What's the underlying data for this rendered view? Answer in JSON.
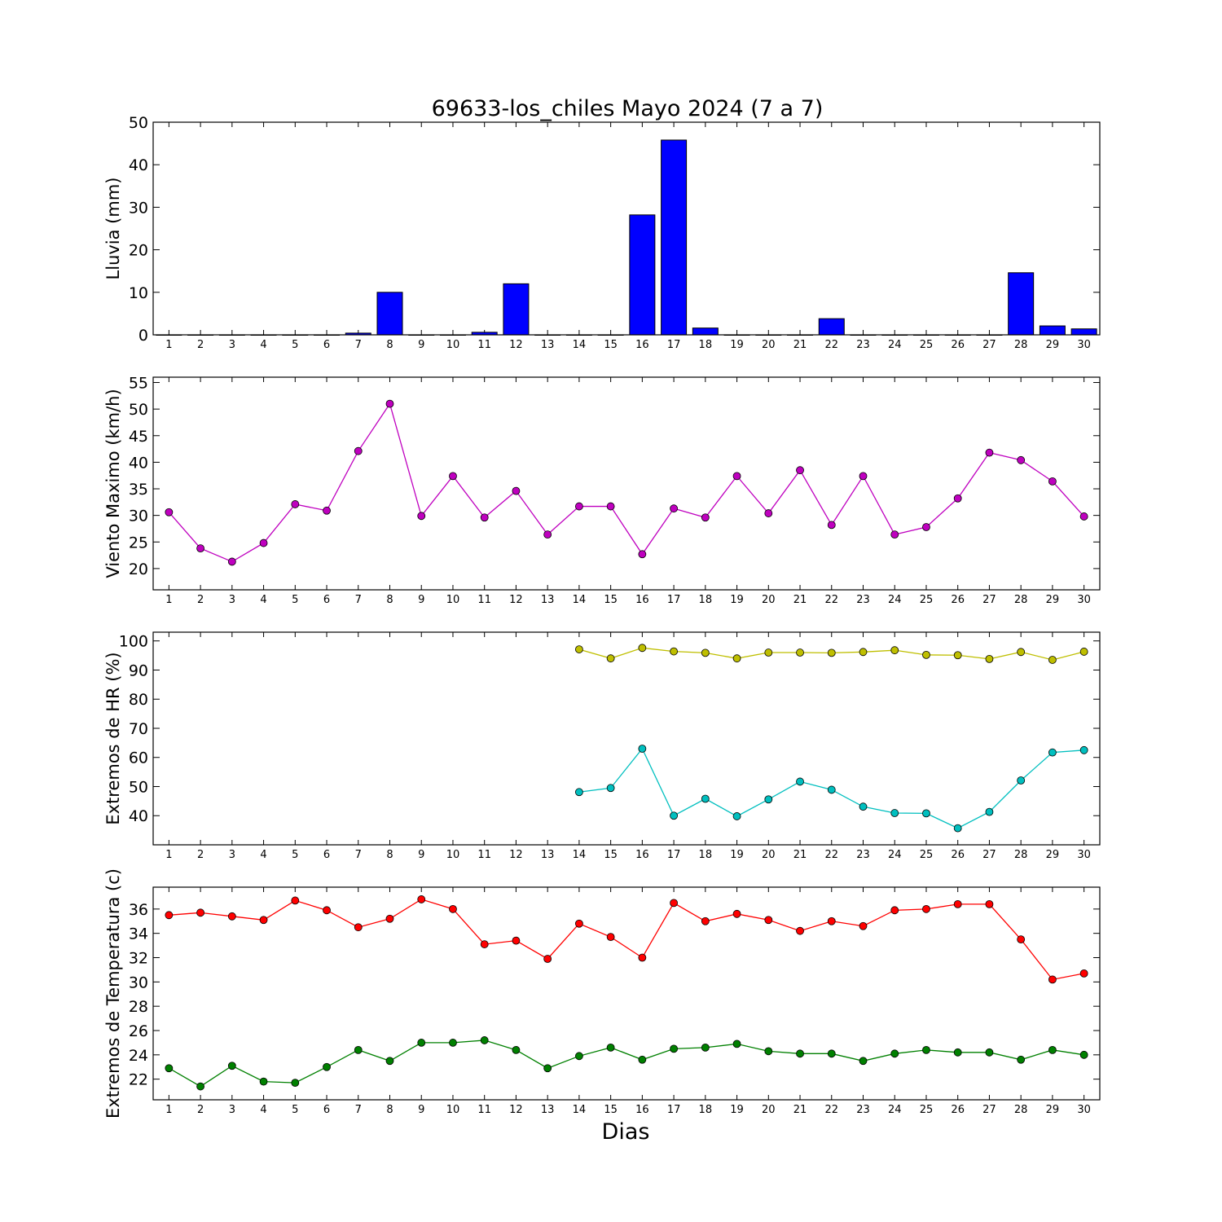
{
  "figure": {
    "title": "69633-los_chiles Mayo 2024  (7 a 7)",
    "xlabel": "Dias"
  },
  "chart_data": [
    {
      "type": "bar",
      "ylabel": "Lluvia (mm)",
      "ylim": [
        0,
        50
      ],
      "yticks": [
        0,
        10,
        20,
        30,
        40,
        50
      ],
      "categories": [
        "1",
        "2",
        "3",
        "4",
        "5",
        "6",
        "7",
        "8",
        "9",
        "10",
        "11",
        "12",
        "13",
        "14",
        "15",
        "16",
        "17",
        "18",
        "19",
        "20",
        "21",
        "22",
        "23",
        "24",
        "25",
        "26",
        "27",
        "28",
        "29",
        "30"
      ],
      "series": [
        {
          "color": "#0000ff",
          "values": [
            0,
            0,
            0,
            0,
            0,
            0,
            0.4,
            10,
            0,
            0,
            0.6,
            12,
            0,
            0,
            0,
            28.2,
            45.8,
            1.6,
            0,
            0,
            0,
            3.8,
            0,
            0,
            0,
            0,
            0,
            14.6,
            2.1,
            1.4
          ]
        }
      ],
      "grid": false
    },
    {
      "type": "line",
      "ylabel": "Viento Maximo (km/h)",
      "ylim": [
        16,
        56
      ],
      "yticks": [
        20,
        25,
        30,
        35,
        40,
        45,
        50,
        55
      ],
      "categories": [
        "1",
        "2",
        "3",
        "4",
        "5",
        "6",
        "7",
        "8",
        "9",
        "10",
        "11",
        "12",
        "13",
        "14",
        "15",
        "16",
        "17",
        "18",
        "19",
        "20",
        "21",
        "22",
        "23",
        "24",
        "25",
        "26",
        "27",
        "28",
        "29",
        "30"
      ],
      "series": [
        {
          "color": "#bf00bf",
          "values": [
            30.6,
            23.8,
            21.3,
            24.8,
            32.1,
            30.9,
            42.1,
            51,
            29.9,
            37.4,
            29.6,
            34.6,
            26.4,
            31.7,
            31.7,
            22.7,
            31.3,
            29.6,
            37.4,
            30.4,
            38.5,
            28.2,
            37.4,
            26.4,
            27.8,
            33.2,
            41.8,
            40.4,
            36.4,
            29.8
          ]
        }
      ],
      "grid": false
    },
    {
      "type": "line",
      "ylabel": "Extremos de HR (%)",
      "ylim": [
        30,
        103
      ],
      "yticks": [
        40,
        50,
        60,
        70,
        80,
        90,
        100
      ],
      "categories": [
        "1",
        "2",
        "3",
        "4",
        "5",
        "6",
        "7",
        "8",
        "9",
        "10",
        "11",
        "12",
        "13",
        "14",
        "15",
        "16",
        "17",
        "18",
        "19",
        "20",
        "21",
        "22",
        "23",
        "24",
        "25",
        "26",
        "27",
        "28",
        "29",
        "30"
      ],
      "series": [
        {
          "color": "#bfbf00",
          "values": [
            null,
            null,
            null,
            null,
            null,
            null,
            null,
            null,
            null,
            null,
            null,
            null,
            null,
            97.1,
            94,
            97.6,
            96.4,
            95.9,
            94,
            96,
            96,
            95.9,
            96.2,
            96.8,
            95.2,
            95.1,
            93.8,
            96.2,
            93.5,
            96.3
          ]
        },
        {
          "color": "#00bfbf",
          "values": [
            null,
            null,
            null,
            null,
            null,
            null,
            null,
            null,
            null,
            null,
            null,
            null,
            null,
            48.1,
            49.5,
            63,
            40,
            45.8,
            39.8,
            45.6,
            51.7,
            48.9,
            43.1,
            40.9,
            40.8,
            35.7,
            41.3,
            52.1,
            61.7,
            62.5
          ]
        }
      ],
      "grid": false
    },
    {
      "type": "line",
      "ylabel": "Extremos de Temperatura (c)",
      "ylim": [
        20.3,
        37.8
      ],
      "yticks": [
        22,
        24,
        26,
        28,
        30,
        32,
        34,
        36
      ],
      "categories": [
        "1",
        "2",
        "3",
        "4",
        "5",
        "6",
        "7",
        "8",
        "9",
        "10",
        "11",
        "12",
        "13",
        "14",
        "15",
        "16",
        "17",
        "18",
        "19",
        "20",
        "21",
        "22",
        "23",
        "24",
        "25",
        "26",
        "27",
        "28",
        "29",
        "30"
      ],
      "series": [
        {
          "color": "#ff0000",
          "values": [
            35.5,
            35.7,
            35.4,
            35.1,
            36.7,
            35.9,
            34.5,
            35.2,
            36.8,
            36,
            33.1,
            33.4,
            31.9,
            34.8,
            33.7,
            32,
            36.5,
            35,
            35.6,
            35.1,
            34.2,
            35,
            34.6,
            35.9,
            36,
            36.4,
            36.4,
            33.5,
            30.2,
            30.7
          ]
        },
        {
          "color": "#008000",
          "values": [
            22.9,
            21.4,
            23.1,
            21.8,
            21.7,
            23,
            24.4,
            23.5,
            25,
            25,
            25.2,
            24.4,
            22.9,
            23.9,
            24.6,
            23.6,
            24.5,
            24.6,
            24.9,
            24.3,
            24.1,
            24.1,
            23.5,
            24.1,
            24.4,
            24.2,
            24.2,
            23.6,
            24.4,
            24
          ]
        }
      ],
      "grid": false
    }
  ]
}
